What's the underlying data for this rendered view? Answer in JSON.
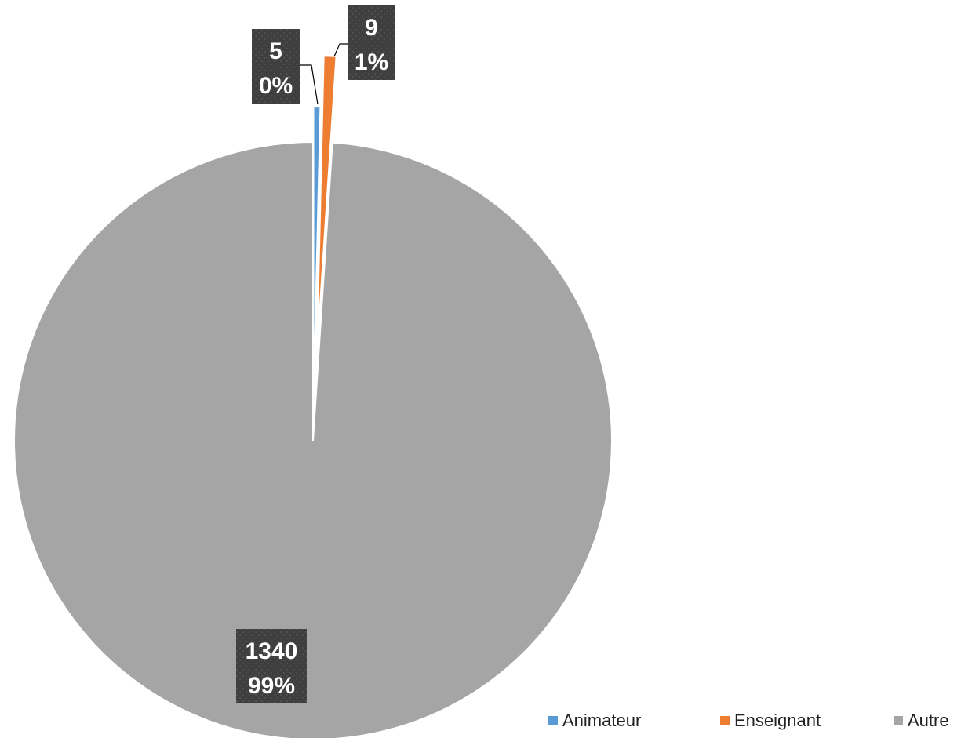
{
  "chart_data": {
    "type": "pie",
    "title": "",
    "categories": [
      "Animateur",
      "Enseignant",
      "Autre"
    ],
    "values": [
      5,
      9,
      1340
    ],
    "percent_labels": [
      "0%",
      "1%",
      "99%"
    ],
    "colors": [
      "#5b9bd5",
      "#ed7d31",
      "#a5a5a5"
    ],
    "exploded_slices": [
      "Animateur",
      "Enseignant"
    ],
    "data_labels": "value and percent",
    "data_label_fill": "#404040",
    "legend": {
      "position": "bottom-right",
      "items": [
        "Animateur",
        "Enseignant",
        "Autre"
      ]
    }
  }
}
